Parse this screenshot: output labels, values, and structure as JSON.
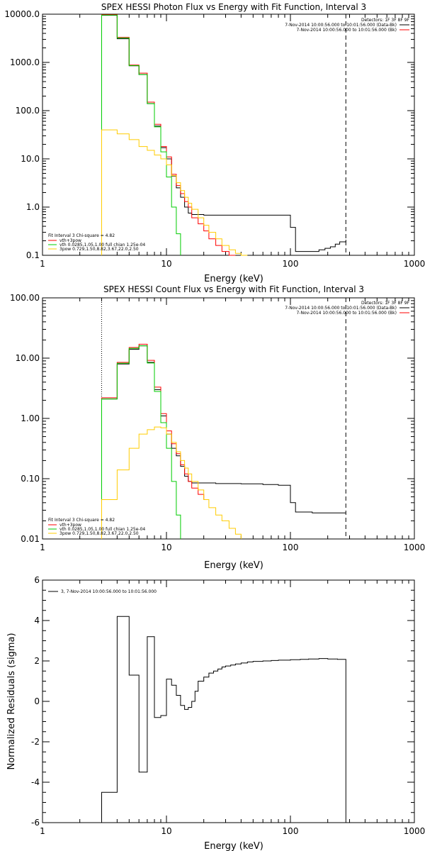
{
  "chart_data": [
    {
      "type": "line",
      "title": "SPEX HESSI Photon Flux vs Energy with Fit Function, Interval 3",
      "xlabel": "Energy (keV)",
      "ylabel": "",
      "xscale": "log",
      "yscale": "log",
      "xlim": [
        1,
        1000
      ],
      "ylim": [
        0.1,
        10000
      ],
      "xticks": [
        "1",
        "10",
        "100",
        "1000"
      ],
      "yticks": [
        "0.1",
        "1.0",
        "10.0",
        "100.0",
        "1000.0",
        "10000.0"
      ],
      "info": [
        "Detectors: 1F 3F 8F 9F",
        "7-Nov-2014 10:00:56.000 to 10:01:56.000 (Data-Bk)",
        "7-Nov-2014 10:00:56.000 to 10:01:56.000 (Bk)"
      ],
      "legend_text": [
        "Fit Interval 3   Chi-square = 4.82",
        "vth+3pow",
        "vth 0.0285,1.05,1.00  full chian 1.25e-04",
        "3pow 0.729,1.50,8.82,3.67,22.0,2.50"
      ],
      "dashed_x": 280,
      "series": [
        {
          "name": "Data-Bk",
          "color": "#000000",
          "x": [
            3,
            4,
            5,
            6,
            7,
            8,
            9,
            10,
            11,
            12,
            13,
            14,
            15,
            16,
            18,
            20,
            100,
            110,
            150,
            170,
            190,
            210,
            230,
            250,
            280
          ],
          "y": [
            9500,
            3100,
            850,
            560,
            140,
            48,
            17,
            10,
            4.4,
            2.5,
            1.6,
            1.0,
            0.75,
            0.7,
            0.7,
            0.68,
            0.38,
            0.12,
            0.12,
            0.13,
            0.14,
            0.15,
            0.17,
            0.19,
            0.21
          ]
        },
        {
          "name": "vth+3pow",
          "color": "#ff0000",
          "x": [
            3,
            4,
            5,
            6,
            7,
            8,
            9,
            10,
            11,
            12,
            13,
            14,
            15,
            16,
            18,
            20,
            22,
            25,
            28,
            32,
            36
          ],
          "y": [
            9800,
            3300,
            880,
            600,
            150,
            52,
            18,
            11,
            4.8,
            2.8,
            1.9,
            1.3,
            1.0,
            0.6,
            0.45,
            0.32,
            0.22,
            0.16,
            0.12,
            0.1,
            0.1
          ]
        },
        {
          "name": "vth",
          "color": "#00cc00",
          "x": [
            3,
            4,
            5,
            6,
            7,
            8,
            9,
            10,
            11,
            12,
            13
          ],
          "y": [
            9600,
            3200,
            860,
            560,
            140,
            46,
            14,
            4.2,
            1.0,
            0.28,
            0.1
          ]
        },
        {
          "name": "3pow",
          "color": "#ffcc00",
          "x": [
            3,
            4,
            5,
            6,
            7,
            8,
            9,
            10,
            11,
            12,
            13,
            14,
            15,
            16,
            18,
            20,
            22,
            25,
            28,
            32,
            36,
            40,
            45
          ],
          "y": [
            40,
            33,
            25,
            18,
            15,
            12,
            10,
            7.5,
            4.5,
            3.2,
            2.2,
            1.6,
            1.2,
            0.9,
            0.6,
            0.42,
            0.3,
            0.22,
            0.16,
            0.13,
            0.11,
            0.1,
            0.1
          ]
        }
      ],
      "vline_x": 3,
      "legend": "top-right"
    },
    {
      "type": "line",
      "title": "SPEX HESSI Count Flux vs Energy with Fit Function, Interval 3",
      "xlabel": "Energy (keV)",
      "ylabel": "",
      "xscale": "log",
      "yscale": "log",
      "xlim": [
        1,
        1000
      ],
      "ylim": [
        0.01,
        100
      ],
      "xticks": [
        "1",
        "10",
        "100",
        "1000"
      ],
      "yticks": [
        "0.01",
        "0.10",
        "1.00",
        "10.00",
        "100.00"
      ],
      "info": [
        "Detectors: 1F 3F 8F 9F",
        "7-Nov-2014 10:00:56.000 to 10:01:56.000 (Data-Bk)",
        "7-Nov-2014 10:00:56.000 to 10:01:56.000 (Bk)"
      ],
      "legend_text": [
        "Fit Interval 3   Chi-square = 4.82",
        "vth+3pow",
        "vth 0.0285,1.05,1.00  full chian 1.25e-04",
        "3pow 0.729,1.50,8.82,3.67,22.0,2.50"
      ],
      "dashed_x": 280,
      "series": [
        {
          "name": "Data-Bk",
          "color": "#000000",
          "x": [
            3,
            4,
            5,
            6,
            7,
            8,
            9,
            10,
            11,
            12,
            13,
            14,
            15,
            16,
            18,
            20,
            25,
            40,
            60,
            80,
            100,
            110,
            150,
            280
          ],
          "y": [
            2.1,
            8.0,
            14,
            16,
            8.5,
            3.0,
            1.1,
            0.55,
            0.32,
            0.24,
            0.16,
            0.11,
            0.09,
            0.085,
            0.085,
            0.085,
            0.083,
            0.082,
            0.08,
            0.078,
            0.04,
            0.028,
            0.027,
            0.027
          ]
        },
        {
          "name": "vth+3pow",
          "color": "#ff0000",
          "x": [
            3,
            4,
            5,
            6,
            7,
            8,
            9,
            10,
            11,
            12,
            13,
            14,
            15,
            16,
            18,
            20
          ],
          "y": [
            2.2,
            8.5,
            15,
            17,
            9.2,
            3.3,
            1.2,
            0.62,
            0.38,
            0.26,
            0.17,
            0.12,
            0.09,
            0.07,
            0.055,
            0.045
          ]
        },
        {
          "name": "vth",
          "color": "#00cc00",
          "x": [
            3,
            4,
            5,
            6,
            7,
            8,
            9,
            10,
            11,
            12,
            13
          ],
          "y": [
            2.1,
            8.2,
            14.5,
            16,
            8.3,
            2.8,
            0.85,
            0.32,
            0.09,
            0.025,
            0.01
          ]
        },
        {
          "name": "3pow",
          "color": "#ffcc00",
          "x": [
            3,
            4,
            5,
            6,
            7,
            8,
            9,
            10,
            11,
            12,
            13,
            14,
            15,
            16,
            18,
            20,
            22,
            25,
            28,
            32,
            36,
            40
          ],
          "y": [
            0.045,
            0.14,
            0.32,
            0.55,
            0.65,
            0.72,
            0.7,
            0.55,
            0.4,
            0.28,
            0.2,
            0.15,
            0.12,
            0.09,
            0.065,
            0.045,
            0.033,
            0.025,
            0.02,
            0.015,
            0.012,
            0.01
          ]
        }
      ],
      "vline_x": 3,
      "legend": "top-right"
    },
    {
      "type": "line",
      "title": "",
      "xlabel": "Energy (keV)",
      "ylabel": "Normalized Residuals (sigma)",
      "xscale": "log",
      "yscale": "linear",
      "xlim": [
        1,
        1000
      ],
      "ylim": [
        -6,
        6
      ],
      "xticks": [
        "1",
        "10",
        "100",
        "1000"
      ],
      "yticks": [
        "-6",
        "-4",
        "-2",
        "0",
        "2",
        "4",
        "6"
      ],
      "legend_text": [
        "3, 7-Nov-2014 10:00:56.000 to 10:01:56.000"
      ],
      "series": [
        {
          "name": "3, 7-Nov-2014 10:00:56.000 to 10:01:56.000",
          "color": "#000000",
          "x": [
            3,
            4,
            5,
            6,
            7,
            8,
            9,
            10,
            11,
            12,
            13,
            14,
            15,
            16,
            17,
            18,
            20,
            22,
            24,
            26,
            28,
            30,
            33,
            36,
            40,
            45,
            50,
            60,
            70,
            80,
            100,
            120,
            140,
            170,
            200,
            240,
            280
          ],
          "y": [
            -4.5,
            4.2,
            1.3,
            -3.5,
            3.2,
            -0.8,
            -0.7,
            1.1,
            0.8,
            0.3,
            -0.2,
            -0.4,
            -0.3,
            0.0,
            0.5,
            1.0,
            1.2,
            1.4,
            1.5,
            1.6,
            1.7,
            1.75,
            1.8,
            1.85,
            1.9,
            1.95,
            1.98,
            2.0,
            2.02,
            2.04,
            2.06,
            2.08,
            2.1,
            2.12,
            2.1,
            2.08,
            2.05
          ]
        }
      ],
      "legend": "top-left"
    }
  ]
}
